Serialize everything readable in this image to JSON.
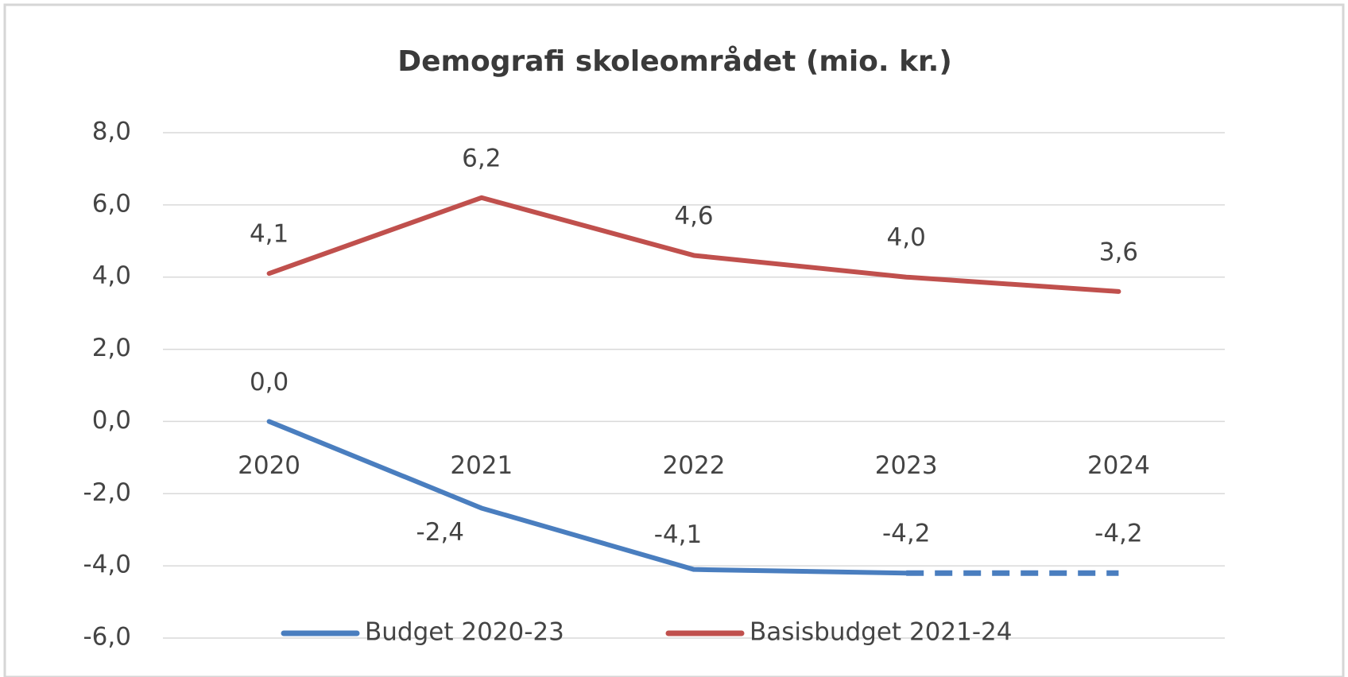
{
  "chart_data": {
    "type": "line",
    "title": "Demografi skoleområdet (mio. kr.)",
    "categories": [
      "2020",
      "2021",
      "2022",
      "2023",
      "2024"
    ],
    "series": [
      {
        "name": "Budget 2020-23",
        "color": "#4a7ebf",
        "values": [
          0.0,
          -2.4,
          -4.1,
          -4.2,
          -4.2
        ],
        "value_labels": [
          "0,0",
          "-2,4",
          "-4,1",
          "-4,2",
          "-4,2"
        ],
        "dashed_segments": [
          3
        ]
      },
      {
        "name": "Basisbudget 2021-24",
        "color": "#c0504d",
        "values": [
          4.1,
          6.2,
          4.6,
          4.0,
          3.6
        ],
        "value_labels": [
          "4,1",
          "6,2",
          "4,6",
          "4,0",
          "3,6"
        ]
      }
    ],
    "ylim": [
      -6,
      8
    ],
    "yticks": [
      {
        "value": -6,
        "label": "-6,0"
      },
      {
        "value": -4,
        "label": "-4,0"
      },
      {
        "value": -2,
        "label": "-2,0"
      },
      {
        "value": 0,
        "label": "0,0"
      },
      {
        "value": 2,
        "label": "2,0"
      },
      {
        "value": 4,
        "label": "4,0"
      },
      {
        "value": 6,
        "label": "6,0"
      },
      {
        "value": 8,
        "label": "8,0"
      }
    ],
    "grid": true,
    "legend": "bottom"
  }
}
